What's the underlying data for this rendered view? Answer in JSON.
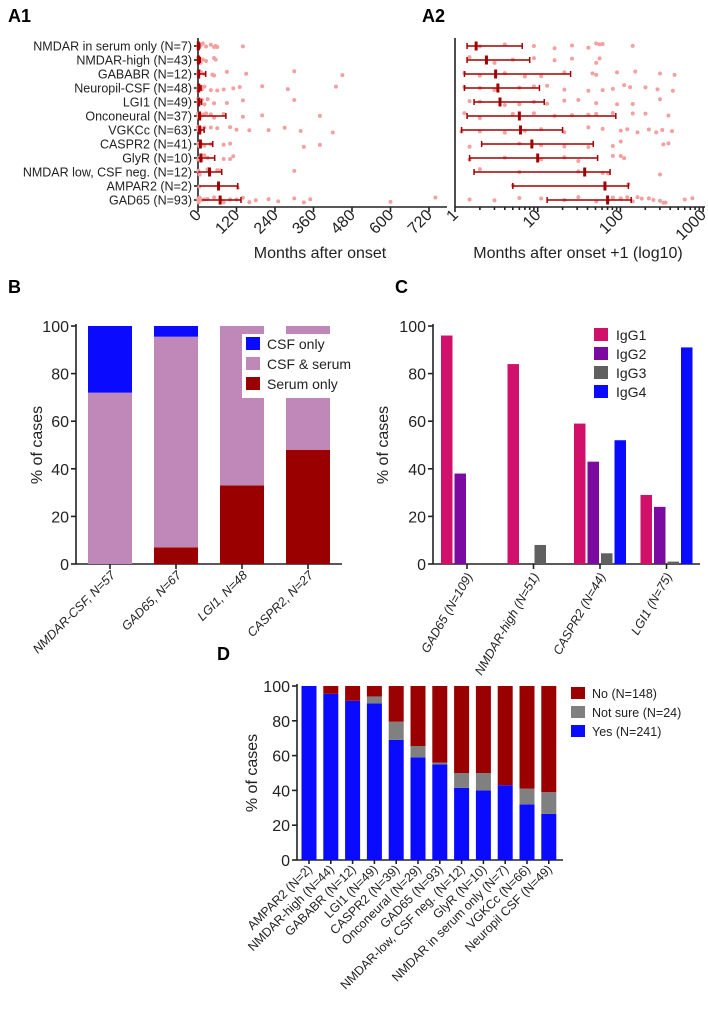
{
  "chart_data": [
    {
      "id": "A1",
      "panel_label": "A1",
      "type": "scatter",
      "xlabel": "Months after onset",
      "xlim": [
        0,
        770
      ],
      "xticks": [
        0,
        120,
        240,
        360,
        480,
        600,
        720
      ],
      "rows": [
        {
          "label": "NMDAR in serum only (N=7)",
          "median": 0.8,
          "q1": 0.4,
          "q3": 5.5,
          "points": [
            1,
            3,
            8,
            15,
            25,
            40,
            50,
            55,
            60,
            140
          ]
        },
        {
          "label": "NMDAR-high (N=43)",
          "median": 1.4,
          "q1": 0.4,
          "q3": 7,
          "points": [
            0.5,
            2,
            4,
            8,
            15,
            25,
            50,
            55
          ]
        },
        {
          "label": "GABABR (N=12)",
          "median": 2.1,
          "q1": 0.3,
          "q3": 24,
          "points": [
            0.3,
            1,
            3,
            6,
            10,
            20,
            45,
            50,
            90,
            150,
            300,
            450
          ]
        },
        {
          "label": "Neuropil-CSF (N=48)",
          "median": 2.3,
          "q1": 0.3,
          "q3": 9.5,
          "points": [
            0.3,
            1,
            2,
            5,
            8,
            12,
            20,
            40,
            60,
            80,
            110,
            130,
            200,
            280,
            430
          ]
        },
        {
          "label": "LGI1 (N=49)",
          "median": 2.5,
          "q1": 0.7,
          "q3": 11,
          "points": [
            0.5,
            1,
            3,
            5,
            8,
            12,
            20,
            30,
            50,
            90,
            140,
            300
          ]
        },
        {
          "label": "Onconeural (N=37)",
          "median": 5,
          "q1": 0.4,
          "q3": 87,
          "points": [
            0.3,
            1,
            4,
            8,
            15,
            25,
            40,
            50,
            80,
            140,
            200,
            380
          ]
        },
        {
          "label": "VGKCc (N=63)",
          "median": 5.2,
          "q1": 0.2,
          "q3": 19,
          "points": [
            0.2,
            1,
            3,
            6,
            10,
            20,
            40,
            60,
            100,
            120,
            160,
            220,
            270,
            320,
            420
          ]
        },
        {
          "label": "CASPR2 (N=41)",
          "median": 7.5,
          "q1": 1.1,
          "q3": 46,
          "points": [
            0.5,
            5,
            10,
            20,
            40,
            80,
            100,
            330,
            380
          ]
        },
        {
          "label": "GlyR (N=10)",
          "median": 9,
          "q1": 0.5,
          "q3": 52,
          "points": [
            0.5,
            3,
            10,
            20,
            30,
            80,
            100,
            110
          ]
        },
        {
          "label": "NMDAR low,  CSF neg. (N=12)",
          "median": 36,
          "q1": 0.7,
          "q3": 74,
          "points": [
            1,
            5,
            30,
            60,
            70,
            300
          ]
        },
        {
          "label": "AMPAR2 (N=2)",
          "median": 64,
          "q1": 4,
          "q3": 124,
          "points": [
            4,
            124
          ]
        },
        {
          "label": "GAD65 (N=93)",
          "median": 69,
          "q1": 12,
          "q3": 134,
          "points": [
            0.5,
            2,
            5,
            10,
            20,
            30,
            50,
            70,
            80,
            100,
            120,
            140,
            160,
            180,
            220,
            250,
            300,
            330,
            350,
            600,
            740
          ]
        }
      ]
    },
    {
      "id": "A2",
      "panel_label": "A2",
      "type": "scatter",
      "scale": "log10",
      "xlabel": "Months after onset +1 (log10)",
      "xlim": [
        1,
        1000
      ],
      "xticks": [
        "1",
        "10",
        "100",
        "1000"
      ]
    },
    {
      "id": "B",
      "panel_label": "B",
      "type": "bar",
      "stacked": true,
      "ylabel": "% of cases",
      "ylim": [
        0,
        100
      ],
      "yticks": [
        "0",
        "20",
        "40",
        "60",
        "80",
        "100"
      ],
      "categories": [
        "NMDAR-CSF, N=57",
        "GAD65, N=67",
        "LGI1, N=48",
        "CASPR2, N=27"
      ],
      "series": [
        {
          "name": "Serum only",
          "color": "#9b0000",
          "values": [
            0,
            7,
            33,
            48
          ]
        },
        {
          "name": "CSF & serum",
          "color": "#c088b8",
          "values": [
            72,
            88.5,
            67,
            52
          ]
        },
        {
          "name": "CSF only",
          "color": "#0a0aff",
          "values": [
            28,
            4.5,
            0,
            0
          ]
        }
      ],
      "legend_order": [
        "CSF only",
        "CSF & serum",
        "Serum only"
      ]
    },
    {
      "id": "C",
      "panel_label": "C",
      "type": "bar",
      "ylabel": "% of cases",
      "ylim": [
        0,
        100
      ],
      "yticks": [
        "0",
        "20",
        "40",
        "60",
        "80",
        "100"
      ],
      "categories": [
        "GAD65 (N=109)",
        "NMDAR-high (N=51)",
        "CASPR2 (N=44)",
        "LGI1 (N=75)"
      ],
      "series": [
        {
          "name": "IgG1",
          "color": "#d0106a",
          "values": [
            96,
            84,
            59,
            29
          ]
        },
        {
          "name": "IgG2",
          "color": "#7a0aa0",
          "values": [
            38,
            0,
            43,
            24
          ]
        },
        {
          "name": "IgG3",
          "color": "#606060",
          "values": [
            0,
            8,
            4.5,
            1
          ]
        },
        {
          "name": "IgG4",
          "color": "#0a0aff",
          "values": [
            0,
            0,
            52,
            91
          ]
        }
      ]
    },
    {
      "id": "D",
      "panel_label": "D",
      "type": "bar",
      "stacked": true,
      "ylabel": "% of cases",
      "ylim": [
        0,
        100
      ],
      "yticks": [
        "0",
        "20",
        "40",
        "60",
        "80",
        "100"
      ],
      "categories": [
        "AMPAR2 (N=2)",
        "NMDAR-high (N=44)",
        "GABABR (N=12)",
        "LGI1 (N=49)",
        "CASPR2 (N=39)",
        "Onconeural (N=29)",
        "GAD65 (N=93)",
        "NMDAR-low, CSF neg. (N=12)",
        "GlyR (N=10)",
        "NMDAR in serum only (N=7)",
        "VGKCc (N=66)",
        "Neuropil CSF (N=49)"
      ],
      "series": [
        {
          "name": "Yes (N=241)",
          "color": "#0a0aff",
          "values": [
            100,
            95.5,
            91.5,
            90,
            69,
            59,
            55,
            41.5,
            40,
            43,
            32,
            26.5
          ]
        },
        {
          "name": "Not sure (N=24)",
          "color": "#808080",
          "values": [
            0,
            0,
            0,
            4,
            10.5,
            6.5,
            1,
            8.5,
            10,
            0,
            9,
            12.5
          ]
        },
        {
          "name": "No (N=148)",
          "color": "#9b0000",
          "values": [
            0,
            4.5,
            8.5,
            6,
            20.5,
            34.5,
            44,
            50,
            50,
            57,
            59,
            61
          ]
        }
      ],
      "legend_order": [
        "No (N=148)",
        "Not sure (N=24)",
        "Yes (N=241)"
      ]
    }
  ],
  "colors": {
    "dot": "#f4a0a0",
    "whisker": "#a00000"
  }
}
